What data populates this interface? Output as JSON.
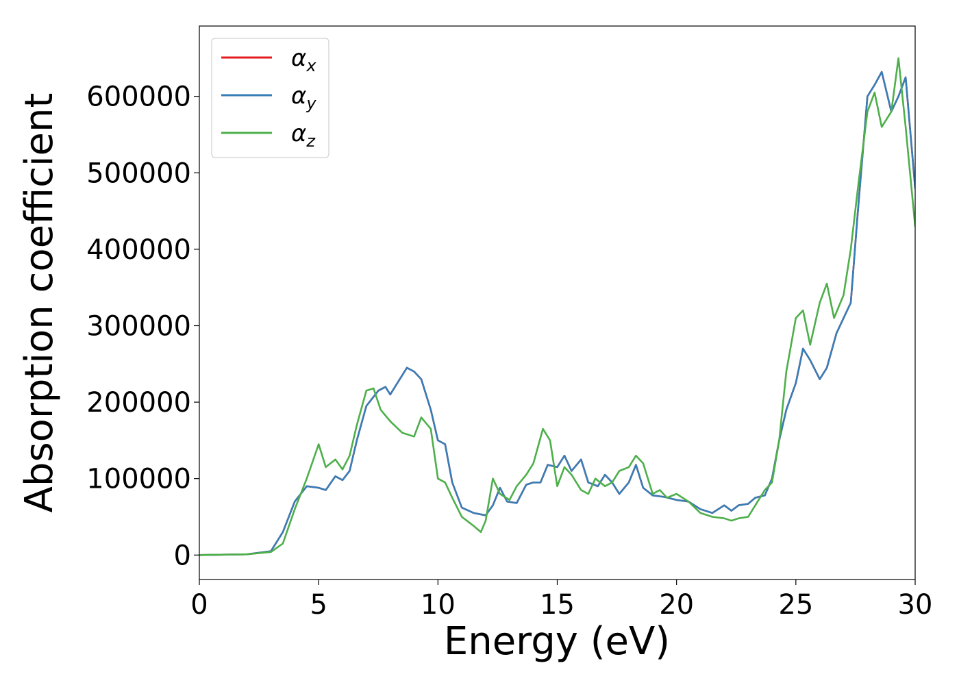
{
  "chart_data": {
    "type": "line",
    "title": "",
    "xlabel": "Energy (eV)",
    "ylabel": "Absorption coefficient",
    "xlim": [
      0,
      30
    ],
    "ylim": [
      -32000,
      692000
    ],
    "xticks": [
      0,
      5,
      10,
      15,
      20,
      25,
      30
    ],
    "xtick_labels": [
      "0",
      "5",
      "10",
      "15",
      "20",
      "25",
      "30"
    ],
    "yticks": [
      0,
      100000,
      200000,
      300000,
      400000,
      500000,
      600000
    ],
    "ytick_labels": [
      "0",
      "100000",
      "200000",
      "300000",
      "400000",
      "500000",
      "600000"
    ],
    "grid": false,
    "legend_position": "top-left",
    "series": [
      {
        "name": "α",
        "subscript": "x",
        "color": "#e41a1c",
        "x": [
          0,
          2,
          3,
          3.5,
          4,
          4.5,
          5,
          5.3,
          5.7,
          6,
          6.3,
          6.6,
          7,
          7.5,
          7.8,
          8,
          8.3,
          8.7,
          9,
          9.3,
          9.7,
          10,
          10.3,
          10.6,
          11,
          11.5,
          12,
          12.3,
          12.6,
          12.9,
          13.3,
          13.7,
          14,
          14.3,
          14.6,
          15,
          15.3,
          15.6,
          16,
          16.3,
          16.7,
          17,
          17.3,
          17.6,
          18,
          18.3,
          18.6,
          19,
          19.5,
          20,
          20.5,
          21,
          21.5,
          22,
          22.3,
          22.6,
          23,
          23.3,
          23.7,
          24,
          24.3,
          24.6,
          25,
          25.3,
          25.6,
          26,
          26.3,
          26.7,
          27,
          27.3,
          27.6,
          28,
          28.3,
          28.6,
          29,
          29.3,
          29.6,
          30
        ],
        "y": [
          0,
          1000,
          5000,
          30000,
          70000,
          90000,
          88000,
          85000,
          103000,
          98000,
          110000,
          150000,
          195000,
          215000,
          220000,
          210000,
          225000,
          245000,
          240000,
          230000,
          190000,
          150000,
          145000,
          95000,
          62000,
          55000,
          52000,
          65000,
          88000,
          70000,
          68000,
          92000,
          95000,
          95000,
          118000,
          115000,
          130000,
          110000,
          125000,
          95000,
          90000,
          105000,
          95000,
          80000,
          95000,
          118000,
          88000,
          78000,
          76000,
          72000,
          70000,
          60000,
          55000,
          65000,
          58000,
          65000,
          67000,
          75000,
          78000,
          100000,
          150000,
          190000,
          225000,
          270000,
          255000,
          230000,
          245000,
          290000,
          310000,
          330000,
          450000,
          600000,
          615000,
          632000,
          580000,
          600000,
          625000,
          480000
        ]
      },
      {
        "name": "α",
        "subscript": "y",
        "color": "#377eb8",
        "x": [
          0,
          2,
          3,
          3.5,
          4,
          4.5,
          5,
          5.3,
          5.7,
          6,
          6.3,
          6.6,
          7,
          7.5,
          7.8,
          8,
          8.3,
          8.7,
          9,
          9.3,
          9.7,
          10,
          10.3,
          10.6,
          11,
          11.5,
          12,
          12.3,
          12.6,
          12.9,
          13.3,
          13.7,
          14,
          14.3,
          14.6,
          15,
          15.3,
          15.6,
          16,
          16.3,
          16.7,
          17,
          17.3,
          17.6,
          18,
          18.3,
          18.6,
          19,
          19.5,
          20,
          20.5,
          21,
          21.5,
          22,
          22.3,
          22.6,
          23,
          23.3,
          23.7,
          24,
          24.3,
          24.6,
          25,
          25.3,
          25.6,
          26,
          26.3,
          26.7,
          27,
          27.3,
          27.6,
          28,
          28.3,
          28.6,
          29,
          29.3,
          29.6,
          30
        ],
        "y": [
          0,
          1000,
          5000,
          30000,
          70000,
          90000,
          88000,
          85000,
          103000,
          98000,
          110000,
          150000,
          195000,
          215000,
          220000,
          210000,
          225000,
          245000,
          240000,
          230000,
          190000,
          150000,
          145000,
          95000,
          62000,
          55000,
          52000,
          65000,
          88000,
          70000,
          68000,
          92000,
          95000,
          95000,
          118000,
          115000,
          130000,
          110000,
          125000,
          95000,
          90000,
          105000,
          95000,
          80000,
          95000,
          118000,
          88000,
          78000,
          76000,
          72000,
          70000,
          60000,
          55000,
          65000,
          58000,
          65000,
          67000,
          75000,
          78000,
          100000,
          150000,
          190000,
          225000,
          270000,
          255000,
          230000,
          245000,
          290000,
          310000,
          330000,
          450000,
          600000,
          615000,
          632000,
          580000,
          600000,
          625000,
          480000
        ]
      },
      {
        "name": "α",
        "subscript": "z",
        "color": "#4daf4a",
        "x": [
          0,
          2,
          3,
          3.5,
          4,
          4.5,
          5,
          5.3,
          5.7,
          6,
          6.3,
          6.6,
          7,
          7.3,
          7.6,
          8,
          8.5,
          9,
          9.3,
          9.7,
          10,
          10.3,
          10.6,
          11,
          11.5,
          11.8,
          12,
          12.3,
          12.6,
          13,
          13.3,
          13.7,
          14,
          14.4,
          14.7,
          15,
          15.3,
          15.6,
          16,
          16.3,
          16.6,
          17,
          17.3,
          17.6,
          18,
          18.3,
          18.6,
          19,
          19.3,
          19.6,
          20,
          20.5,
          21,
          21.5,
          22,
          22.3,
          22.6,
          23,
          23.3,
          23.7,
          24,
          24.3,
          24.6,
          25,
          25.3,
          25.6,
          26,
          26.3,
          26.6,
          27,
          27.3,
          27.6,
          28,
          28.3,
          28.6,
          29,
          29.3,
          29.6,
          30
        ],
        "y": [
          0,
          1000,
          4000,
          15000,
          60000,
          100000,
          145000,
          115000,
          125000,
          112000,
          130000,
          170000,
          215000,
          218000,
          190000,
          175000,
          160000,
          155000,
          180000,
          165000,
          100000,
          95000,
          75000,
          50000,
          38000,
          30000,
          45000,
          100000,
          80000,
          72000,
          90000,
          105000,
          120000,
          165000,
          150000,
          90000,
          115000,
          105000,
          85000,
          80000,
          100000,
          90000,
          95000,
          110000,
          115000,
          130000,
          120000,
          80000,
          85000,
          75000,
          80000,
          70000,
          55000,
          50000,
          48000,
          45000,
          48000,
          50000,
          65000,
          85000,
          95000,
          150000,
          240000,
          310000,
          320000,
          275000,
          330000,
          355000,
          310000,
          340000,
          400000,
          480000,
          580000,
          605000,
          560000,
          580000,
          650000,
          560000,
          430000
        ]
      }
    ]
  }
}
